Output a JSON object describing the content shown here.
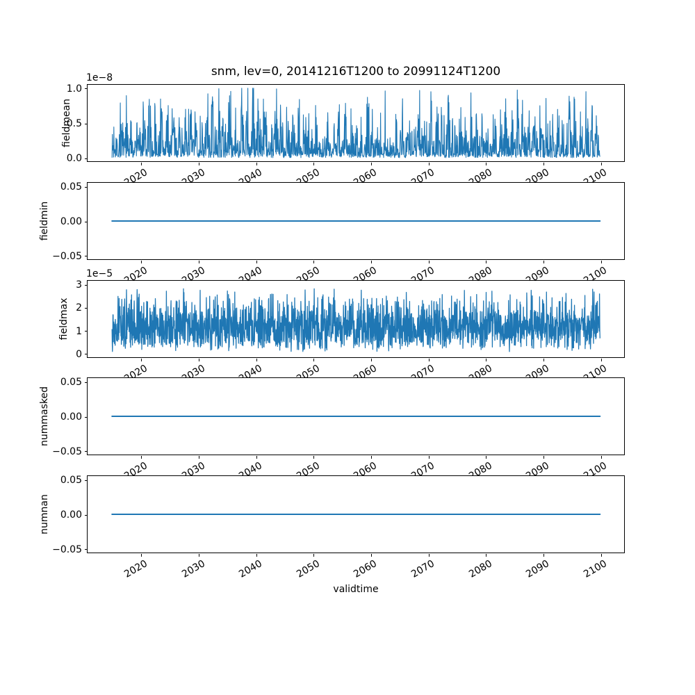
{
  "chart_data": {
    "type": "line",
    "title": "snm, lev=0, 20141216T1200 to 20991124T1200",
    "xlabel": "validtime",
    "line_color": "#1f77b4",
    "frame_color": "#000000",
    "background": "#ffffff",
    "time_start": "20141216T1200",
    "time_end": "20991124T1200",
    "x_range": [
      2014.96,
      2099.9
    ],
    "xlim": [
      2010.7,
      2104.1
    ],
    "grid": false,
    "legend": "none",
    "xticks": [
      {
        "v": 2020,
        "label": "2020"
      },
      {
        "v": 2030,
        "label": "2030"
      },
      {
        "v": 2040,
        "label": "2040"
      },
      {
        "v": 2050,
        "label": "2050"
      },
      {
        "v": 2060,
        "label": "2060"
      },
      {
        "v": 2070,
        "label": "2070"
      },
      {
        "v": 2080,
        "label": "2080"
      },
      {
        "v": 2090,
        "label": "2090"
      },
      {
        "v": 2100,
        "label": "2100"
      }
    ],
    "subplots": [
      {
        "id": "fieldmean",
        "ylabel": "fieldmean",
        "offset_text": "1e−8",
        "unit_scale": "1e-8",
        "ylim": [
          -0.049,
          1.049
        ],
        "yticks": [
          {
            "v": 1.0,
            "label": "1.0"
          },
          {
            "v": 0.5,
            "label": "0.5"
          },
          {
            "v": 0.0,
            "label": "0.0"
          }
        ],
        "series": {
          "kind": "spikes",
          "description": "dense noisy spike train, baseline ~0-0.15e-8, annual clumping, peaks up to 1.0e-8 (max near 2030 and 2046)",
          "seed": 7,
          "n": 1600,
          "base": 0.04,
          "amp": 0.96,
          "pow": 2.0,
          "season_floor": 0.35,
          "env_center": 2036,
          "env_width": 11,
          "env_gain": 0.18,
          "dip_p": 0.18,
          "clamp": 1.0,
          "value_min": 0.0,
          "value_max": 1.0
        }
      },
      {
        "id": "fieldmin",
        "ylabel": "fieldmin",
        "offset_text": "",
        "unit_scale": "1",
        "ylim": [
          -0.0555,
          0.0555
        ],
        "yticks": [
          {
            "v": 0.05,
            "label": "0.05"
          },
          {
            "v": 0.0,
            "label": "0.00"
          },
          {
            "v": -0.05,
            "label": "−0.05"
          }
        ],
        "series": {
          "kind": "flat",
          "value": 0.0,
          "description": "constant 0.0 for entire period"
        }
      },
      {
        "id": "fieldmax",
        "ylabel": "fieldmax",
        "offset_text": "1e−5",
        "unit_scale": "1e-5",
        "ylim": [
          -0.157,
          3.157
        ],
        "yticks": [
          {
            "v": 3,
            "label": "3"
          },
          {
            "v": 2,
            "label": "2"
          },
          {
            "v": 1,
            "label": "1"
          },
          {
            "v": 0,
            "label": "0"
          }
        ],
        "series": {
          "kind": "dense",
          "description": "very dense noise filling ~0.05e-5 to ~1.8e-5, annual sawtooth minima, frequent spikes to 2-3e-5",
          "seed": 13,
          "n": 2200,
          "min_base": 0.04,
          "saw": 0.26,
          "hi_base": 1.5,
          "hi_var": 1.5,
          "hi_pow": 2.5,
          "pow": 0.7,
          "clamp": 3.0,
          "value_min": 0.0,
          "value_max": 3.0
        }
      },
      {
        "id": "nummasked",
        "ylabel": "nummasked",
        "offset_text": "",
        "unit_scale": "1",
        "ylim": [
          -0.0555,
          0.0555
        ],
        "yticks": [
          {
            "v": 0.05,
            "label": "0.05"
          },
          {
            "v": 0.0,
            "label": "0.00"
          },
          {
            "v": -0.05,
            "label": "−0.05"
          }
        ],
        "series": {
          "kind": "flat",
          "value": 0.0,
          "description": "constant 0.0 for entire period"
        }
      },
      {
        "id": "numnan",
        "ylabel": "numnan",
        "offset_text": "",
        "unit_scale": "1",
        "ylim": [
          -0.0555,
          0.0555
        ],
        "yticks": [
          {
            "v": 0.05,
            "label": "0.05"
          },
          {
            "v": 0.0,
            "label": "0.00"
          },
          {
            "v": -0.05,
            "label": "−0.05"
          }
        ],
        "series": {
          "kind": "flat",
          "value": 0.0,
          "description": "constant 0.0 for entire period"
        }
      }
    ]
  }
}
